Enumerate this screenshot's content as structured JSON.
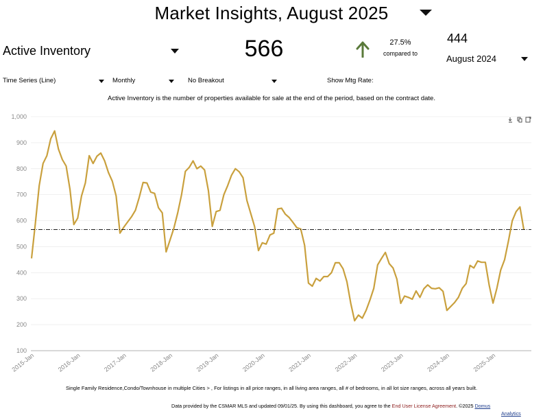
{
  "header": {
    "title": "Market Insights, August 2025",
    "metric_label": "Active Inventory",
    "current_value": "566",
    "change_pct": "27.5%",
    "compared_to_label": "compared to",
    "previous_value": "444",
    "previous_period": "August 2024"
  },
  "controls": {
    "chart_type": "Time Series (Line)",
    "interval": "Monthly",
    "breakout": "No Breakout",
    "mortgage_rate_label": "Show Mtg Rate:"
  },
  "description": "Active Inventory is the number of properties available for sale at the end of the period, based on the contract date.",
  "filters_text": "Single Family Residence,Condo/Townhouse in multiple Cities > , For listings in all price ranges, in all living area ranges, all # of bedrooms, in all lot size ranges, across all years built.",
  "footer": {
    "text": "Data provided by the CSMAR MLS and updated 09/01/25.  By using this dashboard, you agree to the",
    "license_link": "End User License Agreement",
    "copyright": ". ©2025",
    "brand": "Domus",
    "brand2": "Analytics"
  },
  "icons": [
    "download-icon",
    "copy-icon",
    "expand-icon",
    "up-arrow-icon",
    "dropdown-arrow-icon"
  ],
  "colors": {
    "line": "#C9A03D",
    "up_arrow": "#5a7a3a",
    "reference": "#000000",
    "grid": "#e6e6e6"
  },
  "chart_data": {
    "type": "line",
    "ylim": [
      100,
      1000
    ],
    "y_ticks": [
      "100",
      "200",
      "300",
      "400",
      "500",
      "600",
      "700",
      "800",
      "900",
      "1,000"
    ],
    "x_ticks": [
      "2015-Jan",
      "2016-Jan",
      "2017-Jan",
      "2018-Jan",
      "2019-Jan",
      "2020-Jan",
      "2021-Jan",
      "2022-Jan",
      "2023-Jan",
      "2024-Jan",
      "2025-Jan"
    ],
    "x_start": "2015-01",
    "frequency": "monthly",
    "reference_line": 566,
    "series": [
      {
        "values": [
          455,
          590,
          735,
          820,
          850,
          915,
          945,
          875,
          835,
          810,
          720,
          585,
          610,
          695,
          745,
          850,
          820,
          848,
          860,
          830,
          785,
          752,
          695,
          552,
          575,
          595,
          615,
          640,
          690,
          747,
          745,
          710,
          705,
          650,
          630,
          480,
          525,
          570,
          630,
          700,
          790,
          805,
          830,
          800,
          810,
          795,
          715,
          578,
          635,
          640,
          700,
          735,
          775,
          800,
          788,
          765,
          678,
          628,
          578,
          485,
          515,
          510,
          545,
          552,
          645,
          648,
          625,
          612,
          593,
          573,
          568,
          505,
          360,
          348,
          378,
          368,
          385,
          385,
          400,
          438,
          438,
          415,
          365,
          282,
          215,
          237,
          225,
          255,
          295,
          340,
          430,
          455,
          478,
          435,
          418,
          375,
          282,
          310,
          305,
          298,
          330,
          305,
          338,
          353,
          340,
          338,
          342,
          328,
          255,
          270,
          285,
          305,
          340,
          358,
          428,
          418,
          445,
          440,
          440,
          352,
          283,
          340,
          410,
          450,
          522,
          600,
          635,
          653,
          566
        ]
      }
    ]
  }
}
